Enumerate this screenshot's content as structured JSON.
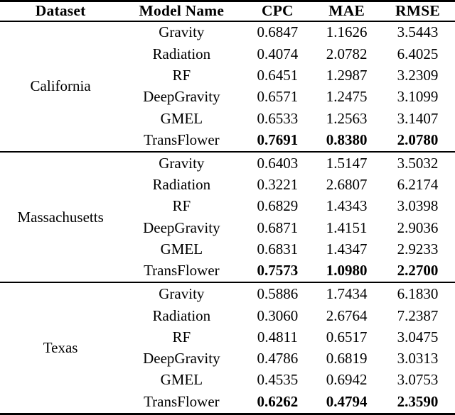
{
  "table": {
    "columns": [
      "Dataset",
      "Model Name",
      "CPC",
      "MAE",
      "RMSE"
    ],
    "groups": [
      {
        "dataset": "California",
        "rows": [
          {
            "model": "Gravity",
            "cpc": "0.6847",
            "mae": "1.1626",
            "rmse": "3.5443",
            "best": false
          },
          {
            "model": "Radiation",
            "cpc": "0.4074",
            "mae": "2.0782",
            "rmse": "6.4025",
            "best": false
          },
          {
            "model": "RF",
            "cpc": "0.6451",
            "mae": "1.2987",
            "rmse": "3.2309",
            "best": false
          },
          {
            "model": "DeepGravity",
            "cpc": "0.6571",
            "mae": "1.2475",
            "rmse": "3.1099",
            "best": false
          },
          {
            "model": "GMEL",
            "cpc": "0.6533",
            "mae": "1.2563",
            "rmse": "3.1407",
            "best": false
          },
          {
            "model": "TransFlower",
            "cpc": "0.7691",
            "mae": "0.8380",
            "rmse": "2.0780",
            "best": true
          }
        ]
      },
      {
        "dataset": "Massachusetts",
        "rows": [
          {
            "model": "Gravity",
            "cpc": "0.6403",
            "mae": "1.5147",
            "rmse": "3.5032",
            "best": false
          },
          {
            "model": "Radiation",
            "cpc": "0.3221",
            "mae": "2.6807",
            "rmse": "6.2174",
            "best": false
          },
          {
            "model": "RF",
            "cpc": "0.6829",
            "mae": "1.4343",
            "rmse": "3.0398",
            "best": false
          },
          {
            "model": "DeepGravity",
            "cpc": "0.6871",
            "mae": "1.4151",
            "rmse": "2.9036",
            "best": false
          },
          {
            "model": "GMEL",
            "cpc": "0.6831",
            "mae": "1.4347",
            "rmse": "2.9233",
            "best": false
          },
          {
            "model": "TransFlower",
            "cpc": "0.7573",
            "mae": "1.0980",
            "rmse": "2.2700",
            "best": true
          }
        ]
      },
      {
        "dataset": "Texas",
        "rows": [
          {
            "model": "Gravity",
            "cpc": "0.5886",
            "mae": "1.7434",
            "rmse": "6.1830",
            "best": false
          },
          {
            "model": "Radiation",
            "cpc": "0.3060",
            "mae": "2.6764",
            "rmse": "7.2387",
            "best": false
          },
          {
            "model": "RF",
            "cpc": "0.4811",
            "mae": "0.6517",
            "rmse": "3.0475",
            "best": false
          },
          {
            "model": "DeepGravity",
            "cpc": "0.4786",
            "mae": "0.6819",
            "rmse": "3.0313",
            "best": false
          },
          {
            "model": "GMEL",
            "cpc": "0.4535",
            "mae": "0.6942",
            "rmse": "3.0753",
            "best": false
          },
          {
            "model": "TransFlower",
            "cpc": "0.6262",
            "mae": "0.4794",
            "rmse": "2.3590",
            "best": true
          }
        ]
      }
    ],
    "colors": {
      "text": "#000000",
      "background": "#ffffff",
      "rule": "#000000"
    }
  }
}
